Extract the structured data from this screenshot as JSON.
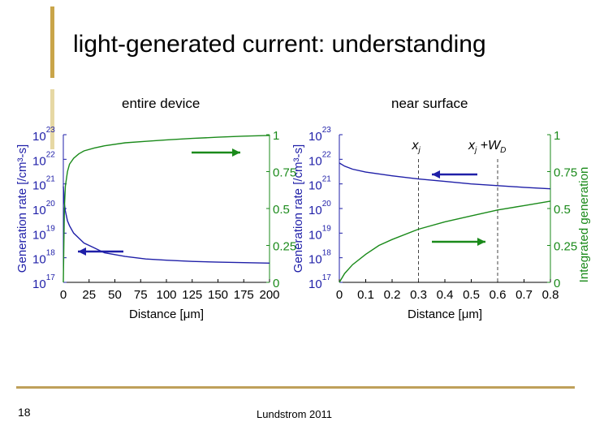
{
  "slide": {
    "title": "light-generated current:  understanding",
    "subtitle_left": "entire device",
    "subtitle_right": "near surface",
    "slide_number": "18",
    "footer": "Lundstrom 2011"
  },
  "colors": {
    "generation": "#1f1fa8",
    "integrated": "#1a8a1a",
    "accent_bar": "#c9a54a"
  },
  "chart_data": [
    {
      "type": "line",
      "title": "entire device",
      "xlabel": "Distance [μm]",
      "ylabel": "Generation rate [/cm³-s]",
      "y2label": "",
      "xlim": [
        0,
        200
      ],
      "ylim_log10": [
        17,
        23
      ],
      "y2lim": [
        0,
        1
      ],
      "x_ticks": [
        "0",
        "25",
        "50",
        "75",
        "100",
        "125",
        "150",
        "175",
        "200"
      ],
      "y_ticks": [
        "17",
        "18",
        "19",
        "20",
        "21",
        "22",
        "23"
      ],
      "y2_ticks": [
        "0",
        "0.25",
        "0.5",
        "0.75",
        "1"
      ],
      "series": [
        {
          "axis": "left",
          "color": "#1f1fa8",
          "x": [
            0,
            1,
            2,
            4,
            6,
            10,
            15,
            20,
            30,
            40,
            60,
            80,
            100,
            125,
            150,
            175,
            200
          ],
          "y_log10": [
            20.9,
            20.2,
            19.9,
            19.5,
            19.3,
            19.0,
            18.8,
            18.6,
            18.4,
            18.2,
            18.05,
            17.95,
            17.9,
            17.85,
            17.82,
            17.8,
            17.78
          ]
        },
        {
          "axis": "right",
          "color": "#1a8a1a",
          "x": [
            0,
            1,
            2,
            4,
            6,
            10,
            15,
            20,
            30,
            40,
            60,
            80,
            100,
            125,
            150,
            175,
            200
          ],
          "y": [
            0.0,
            0.5,
            0.65,
            0.75,
            0.8,
            0.84,
            0.87,
            0.89,
            0.91,
            0.925,
            0.945,
            0.955,
            0.965,
            0.975,
            0.983,
            0.99,
            0.995
          ]
        }
      ],
      "arrows": [
        {
          "direction": "right",
          "series": "integrated"
        },
        {
          "direction": "left",
          "series": "generation"
        }
      ]
    },
    {
      "type": "line",
      "title": "near surface",
      "xlabel": "Distance [μm]",
      "ylabel": "Generation rate [/cm³-s]",
      "y2label": "Integrated generation",
      "xlim": [
        0,
        0.8
      ],
      "ylim_log10": [
        17,
        23
      ],
      "y2lim": [
        0,
        1
      ],
      "x_ticks": [
        "0",
        "0.1",
        "0.2",
        "0.3",
        "0.4",
        "0.5",
        "0.6",
        "0.7",
        "0.8"
      ],
      "y_ticks": [
        "17",
        "18",
        "19",
        "20",
        "21",
        "22",
        "23"
      ],
      "y2_ticks": [
        "0",
        "0.25",
        "0.5",
        "0.75",
        "1"
      ],
      "series": [
        {
          "axis": "left",
          "color": "#1f1fa8",
          "x": [
            0,
            0.02,
            0.05,
            0.1,
            0.2,
            0.3,
            0.4,
            0.5,
            0.6,
            0.7,
            0.8
          ],
          "y_log10": [
            21.85,
            21.72,
            21.6,
            21.48,
            21.33,
            21.2,
            21.1,
            21.0,
            20.93,
            20.86,
            20.8
          ]
        },
        {
          "axis": "right",
          "color": "#1a8a1a",
          "x": [
            0,
            0.02,
            0.05,
            0.1,
            0.15,
            0.2,
            0.3,
            0.4,
            0.5,
            0.6,
            0.7,
            0.8
          ],
          "y": [
            0.0,
            0.06,
            0.12,
            0.19,
            0.25,
            0.29,
            0.36,
            0.41,
            0.45,
            0.49,
            0.52,
            0.55
          ]
        }
      ],
      "vlines": [
        {
          "x": 0.3,
          "label_main": "x",
          "label_sub": "j"
        },
        {
          "x": 0.6,
          "label_main": "x",
          "label_sub": "j",
          "label_plus": "+W",
          "label_sub2": "D"
        }
      ],
      "arrows": [
        {
          "direction": "left",
          "series": "generation"
        },
        {
          "direction": "right",
          "series": "integrated"
        }
      ]
    }
  ]
}
